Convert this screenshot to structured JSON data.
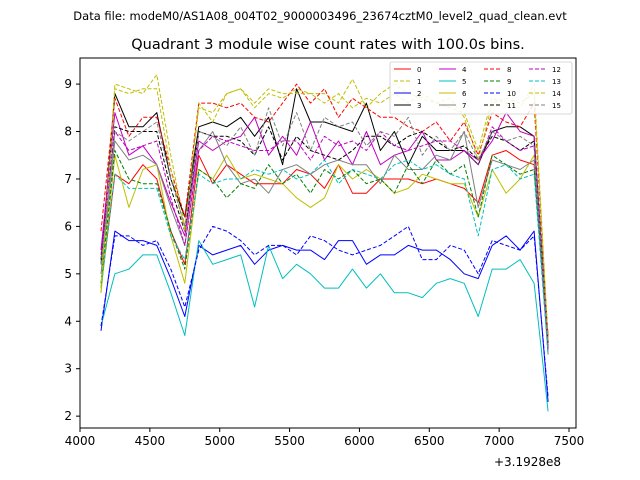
{
  "file_label": "Data file: modeM0/AS1A08_004T02_9000003496_23674cztM0_level2_quad_clean.evt",
  "chart_data": {
    "type": "line",
    "title": "Quadrant 3 module wise count rates with 100.0s bins.",
    "xlabel": "",
    "ylabel": "",
    "x_offset_label": "+3.1928e8",
    "xlim": [
      4000,
      7550
    ],
    "ylim": [
      1.75,
      9.55
    ],
    "xticks": [
      4000,
      4500,
      5000,
      5500,
      6000,
      6500,
      7000,
      7500
    ],
    "yticks": [
      2,
      3,
      4,
      5,
      6,
      7,
      8,
      9
    ],
    "grid": false,
    "legend_position": "top-right",
    "x": [
      4150,
      4250,
      4350,
      4450,
      4550,
      4650,
      4750,
      4850,
      4950,
      5050,
      5150,
      5250,
      5350,
      5450,
      5550,
      5650,
      5750,
      5850,
      5950,
      6050,
      6150,
      6250,
      6350,
      6450,
      6550,
      6650,
      6750,
      6850,
      6950,
      7050,
      7150,
      7250,
      7350
    ],
    "series": [
      {
        "name": "0",
        "color": "#ff0000",
        "style": "solid",
        "values": [
          4.7,
          7.1,
          6.9,
          7.3,
          7.0,
          5.9,
          5.2,
          7.5,
          6.9,
          7.3,
          7.1,
          6.9,
          6.9,
          6.9,
          7.2,
          7.1,
          6.8,
          7.3,
          6.7,
          6.7,
          7.0,
          7.0,
          7.0,
          6.9,
          7.0,
          6.9,
          6.8,
          6.5,
          7.5,
          7.6,
          7.4,
          7.3,
          3.7
        ]
      },
      {
        "name": "1",
        "color": "#bfbf00",
        "style": "dashed",
        "values": [
          4.6,
          9.0,
          8.9,
          8.8,
          9.2,
          7.5,
          6.0,
          8.5,
          8.4,
          8.8,
          8.9,
          8.5,
          8.8,
          8.7,
          8.9,
          8.8,
          8.8,
          8.6,
          9.1,
          8.5,
          8.8,
          9.0,
          8.8,
          8.7,
          8.6,
          8.5,
          8.4,
          7.6,
          8.7,
          8.6,
          8.5,
          9.0,
          3.6
        ]
      },
      {
        "name": "2",
        "color": "#0000ff",
        "style": "solid",
        "values": [
          3.8,
          5.9,
          5.7,
          5.7,
          5.6,
          4.9,
          4.1,
          5.6,
          5.4,
          5.5,
          5.6,
          5.2,
          5.5,
          5.6,
          5.5,
          5.5,
          5.3,
          5.7,
          5.7,
          5.2,
          5.4,
          5.4,
          5.6,
          5.5,
          5.5,
          5.3,
          5.0,
          4.9,
          5.6,
          5.8,
          5.5,
          5.9,
          2.3
        ]
      },
      {
        "name": "3",
        "color": "#000000",
        "style": "solid",
        "values": [
          5.2,
          8.8,
          8.1,
          8.1,
          8.4,
          7.0,
          6.2,
          8.1,
          8.2,
          8.1,
          8.3,
          7.9,
          8.3,
          7.3,
          8.9,
          8.2,
          8.2,
          8.1,
          8.0,
          8.6,
          7.6,
          8.0,
          7.3,
          7.9,
          7.6,
          7.6,
          7.6,
          7.3,
          8.0,
          8.1,
          8.1,
          7.9,
          3.5
        ]
      },
      {
        "name": "4",
        "color": "#bf00bf",
        "style": "solid",
        "values": [
          5.5,
          8.4,
          7.5,
          7.7,
          7.3,
          6.5,
          5.8,
          7.8,
          7.6,
          7.8,
          7.9,
          8.3,
          7.5,
          7.9,
          7.5,
          8.2,
          7.4,
          7.8,
          7.3,
          8.0,
          7.3,
          7.5,
          7.6,
          8.0,
          7.4,
          7.4,
          7.6,
          7.4,
          7.8,
          8.4,
          8.0,
          7.9,
          3.4
        ]
      },
      {
        "name": "5",
        "color": "#00bfbf",
        "style": "solid",
        "values": [
          3.9,
          5.0,
          5.1,
          5.4,
          5.4,
          4.6,
          3.7,
          5.7,
          5.2,
          5.3,
          5.4,
          4.3,
          5.6,
          4.9,
          5.2,
          5.0,
          4.7,
          4.7,
          5.1,
          4.7,
          5.0,
          4.6,
          4.6,
          4.5,
          4.8,
          4.9,
          4.8,
          4.1,
          5.1,
          5.1,
          5.3,
          4.8,
          2.1
        ]
      },
      {
        "name": "6",
        "color": "#bfbf00",
        "style": "solid",
        "values": [
          4.6,
          7.5,
          6.4,
          7.2,
          7.3,
          5.8,
          4.8,
          7.2,
          7.0,
          7.5,
          7.0,
          7.1,
          7.0,
          6.9,
          6.6,
          6.4,
          6.6,
          7.3,
          7.0,
          7.2,
          7.0,
          6.7,
          6.8,
          7.1,
          7.0,
          6.9,
          6.9,
          6.2,
          7.2,
          6.7,
          7.0,
          7.5,
          3.3
        ]
      },
      {
        "name": "7",
        "color": "#808080",
        "style": "solid",
        "values": [
          5.0,
          7.8,
          7.4,
          7.5,
          7.3,
          6.4,
          5.6,
          7.6,
          8.0,
          7.3,
          6.9,
          7.0,
          6.7,
          7.2,
          7.3,
          7.1,
          7.3,
          7.4,
          7.3,
          7.3,
          6.9,
          7.5,
          7.2,
          7.2,
          7.5,
          7.4,
          8.0,
          6.4,
          7.4,
          7.3,
          7.2,
          7.4,
          3.3
        ]
      },
      {
        "name": "8",
        "color": "#ff0000",
        "style": "dashed",
        "values": [
          5.9,
          8.7,
          7.9,
          8.3,
          8.3,
          7.2,
          6.2,
          8.6,
          8.6,
          8.5,
          8.6,
          8.3,
          8.2,
          8.6,
          9.0,
          8.6,
          8.9,
          8.3,
          8.7,
          8.5,
          8.3,
          8.3,
          8.1,
          8.0,
          8.2,
          7.8,
          8.2,
          7.5,
          8.4,
          8.2,
          8.1,
          8.6,
          3.6
        ]
      },
      {
        "name": "9",
        "color": "#008000",
        "style": "dashed",
        "values": [
          4.8,
          7.6,
          7.0,
          6.9,
          6.9,
          5.9,
          5.1,
          7.2,
          7.0,
          6.6,
          6.9,
          6.8,
          7.3,
          6.9,
          7.1,
          6.7,
          7.2,
          7.0,
          7.2,
          6.9,
          7.0,
          6.7,
          7.3,
          6.9,
          7.4,
          7.1,
          7.3,
          6.2,
          7.5,
          7.3,
          7.1,
          7.2,
          3.5
        ]
      },
      {
        "name": "10",
        "color": "#0000ff",
        "style": "dashed",
        "values": [
          3.9,
          5.8,
          5.8,
          5.6,
          5.7,
          5.1,
          4.3,
          5.5,
          6.0,
          5.9,
          5.7,
          5.4,
          5.6,
          5.6,
          5.4,
          5.8,
          5.7,
          5.5,
          5.4,
          5.5,
          5.6,
          5.8,
          6.0,
          5.3,
          5.3,
          5.6,
          5.5,
          5.0,
          5.7,
          5.6,
          5.5,
          5.8,
          2.4
        ]
      },
      {
        "name": "11",
        "color": "#000000",
        "style": "dashed",
        "values": [
          5.3,
          8.1,
          8.0,
          8.0,
          8.0,
          6.8,
          5.9,
          8.0,
          7.9,
          7.9,
          7.8,
          7.5,
          8.1,
          7.4,
          7.9,
          7.6,
          7.5,
          7.4,
          7.6,
          7.9,
          7.9,
          7.7,
          7.9,
          8.0,
          7.8,
          7.6,
          7.7,
          7.4,
          7.9,
          7.8,
          7.6,
          7.8,
          3.5
        ]
      },
      {
        "name": "12",
        "color": "#bf00bf",
        "style": "dashed",
        "values": [
          5.4,
          8.0,
          7.6,
          7.7,
          7.8,
          6.6,
          5.6,
          7.6,
          7.9,
          7.8,
          7.7,
          7.6,
          7.6,
          7.8,
          7.8,
          7.4,
          7.9,
          7.7,
          7.8,
          7.6,
          8.0,
          7.7,
          7.6,
          7.7,
          7.8,
          7.8,
          7.6,
          7.3,
          8.1,
          7.8,
          7.6,
          7.7,
          3.4
        ]
      },
      {
        "name": "13",
        "color": "#00bfbf",
        "style": "dashed",
        "values": [
          4.7,
          7.1,
          6.8,
          6.8,
          6.8,
          5.8,
          5.3,
          7.1,
          6.9,
          7.0,
          7.0,
          7.2,
          7.1,
          7.2,
          7.0,
          7.1,
          7.4,
          6.9,
          7.2,
          7.1,
          7.0,
          7.3,
          7.4,
          7.2,
          7.3,
          7.1,
          7.0,
          5.8,
          7.2,
          7.3,
          7.0,
          7.1,
          3.3
        ]
      },
      {
        "name": "14",
        "color": "#bfbf00",
        "style": "dashed",
        "values": [
          4.7,
          8.9,
          8.8,
          8.9,
          8.9,
          7.2,
          5.9,
          8.6,
          8.2,
          8.8,
          8.9,
          8.6,
          8.9,
          8.8,
          8.8,
          8.8,
          8.6,
          8.8,
          8.5,
          8.7,
          8.6,
          8.8,
          8.6,
          8.8,
          8.6,
          8.7,
          8.3,
          7.4,
          8.6,
          8.7,
          8.6,
          8.8,
          3.6
        ]
      },
      {
        "name": "15",
        "color": "#808080",
        "style": "dashed",
        "values": [
          5.2,
          8.0,
          7.8,
          8.0,
          8.2,
          7.0,
          6.0,
          8.0,
          7.9,
          7.7,
          8.1,
          7.5,
          8.5,
          7.7,
          8.4,
          7.6,
          8.3,
          8.1,
          8.2,
          7.7,
          8.0,
          7.9,
          8.3,
          7.5,
          7.9,
          7.6,
          8.0,
          7.4,
          8.0,
          7.8,
          7.9,
          7.7,
          3.5
        ]
      }
    ]
  }
}
